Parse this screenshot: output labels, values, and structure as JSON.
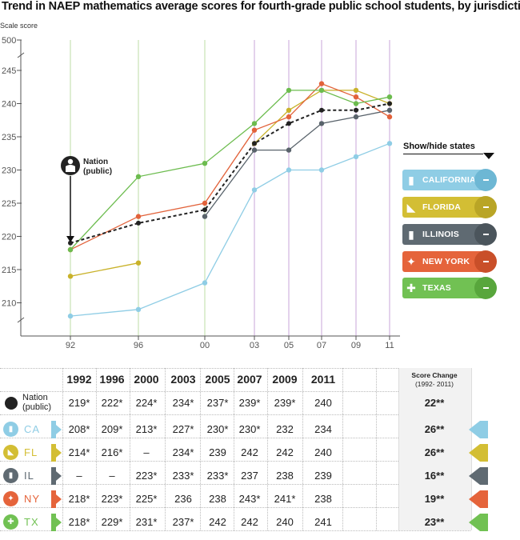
{
  "title": "Trend in NAEP mathematics average scores for fourth-grade public school students, by jurisdiction",
  "chart_data": {
    "type": "line",
    "ylabel": "Scale score",
    "y_axis_break": true,
    "ylim": [
      205,
      245
    ],
    "y_top_label": "500",
    "y_ticks": [
      "210",
      "215",
      "220",
      "225",
      "230",
      "235",
      "240",
      "245"
    ],
    "x": [
      1992,
      1996,
      2000,
      2003,
      2005,
      2007,
      2009,
      2011
    ],
    "x_tick_labels": [
      "92",
      "96",
      "00",
      "03",
      "05",
      "07",
      "09",
      "11"
    ],
    "series": [
      {
        "name": "California",
        "color": "#8fcde5",
        "values": [
          208,
          209,
          213,
          227,
          230,
          230,
          232,
          234
        ]
      },
      {
        "name": "Florida",
        "color": "#c9b22a",
        "values": [
          214,
          216,
          null,
          234,
          239,
          242,
          242,
          240
        ]
      },
      {
        "name": "Illinois",
        "color": "#59636b",
        "values": [
          null,
          null,
          223,
          233,
          233,
          237,
          238,
          239
        ]
      },
      {
        "name": "New York",
        "color": "#e2623a",
        "values": [
          218,
          223,
          225,
          236,
          238,
          243,
          241,
          238
        ]
      },
      {
        "name": "Texas",
        "color": "#6cbc4e",
        "values": [
          218,
          229,
          231,
          237,
          242,
          242,
          240,
          241
        ]
      },
      {
        "name": "Nation (public)",
        "color": "#222222",
        "dashed": true,
        "values": [
          219,
          222,
          224,
          234,
          237,
          239,
          239,
          240
        ]
      }
    ],
    "annotation": {
      "line1": "Nation",
      "line2": "(public)"
    }
  },
  "toggle": {
    "title": "Show/hide states",
    "states": [
      {
        "label": "CALIFORNIA",
        "color": "#8fcde5",
        "dark": "#6db7d4",
        "icon": "california-icon"
      },
      {
        "label": "FLORIDA",
        "color": "#d3be34",
        "dark": "#b9a526",
        "icon": "florida-icon"
      },
      {
        "label": "ILLINOIS",
        "color": "#5f6a72",
        "dark": "#4b555c",
        "icon": "illinois-icon"
      },
      {
        "label": "NEW YORK",
        "color": "#e5643b",
        "dark": "#c94f29",
        "icon": "new-york-icon"
      },
      {
        "label": "TEXAS",
        "color": "#71c153",
        "dark": "#58a63c",
        "icon": "texas-icon"
      }
    ]
  },
  "table": {
    "years": [
      "1992",
      "1996",
      "2000",
      "2003",
      "2005",
      "2007",
      "2009",
      "2011"
    ],
    "score_change_header": "Score Change",
    "score_change_sub": "(1992- 2011)",
    "rows": [
      {
        "label": "Nation",
        "label2": "(public)",
        "color": "#222222",
        "values": [
          "219*",
          "222*",
          "224*",
          "234*",
          "237*",
          "239*",
          "239*",
          "240"
        ],
        "change": "22**"
      },
      {
        "label": "CA",
        "color": "#8fcde5",
        "values": [
          "208*",
          "209*",
          "213*",
          "227*",
          "230*",
          "230*",
          "232",
          "234"
        ],
        "change": "26**"
      },
      {
        "label": "FL",
        "color": "#d3be34",
        "values": [
          "214*",
          "216*",
          "–",
          "234*",
          "239",
          "242",
          "242",
          "240"
        ],
        "change": "26**"
      },
      {
        "label": "IL",
        "color": "#5f6a72",
        "values": [
          "–",
          "–",
          "223*",
          "233*",
          "233*",
          "237",
          "238",
          "239"
        ],
        "change": "16**"
      },
      {
        "label": "NY",
        "color": "#e5643b",
        "values": [
          "218*",
          "223*",
          "225*",
          "236",
          "238",
          "243*",
          "241*",
          "238"
        ],
        "change": "19**"
      },
      {
        "label": "TX",
        "color": "#71c153",
        "values": [
          "218*",
          "229*",
          "231*",
          "237*",
          "242",
          "242",
          "240",
          "241"
        ],
        "change": "23**"
      }
    ]
  }
}
